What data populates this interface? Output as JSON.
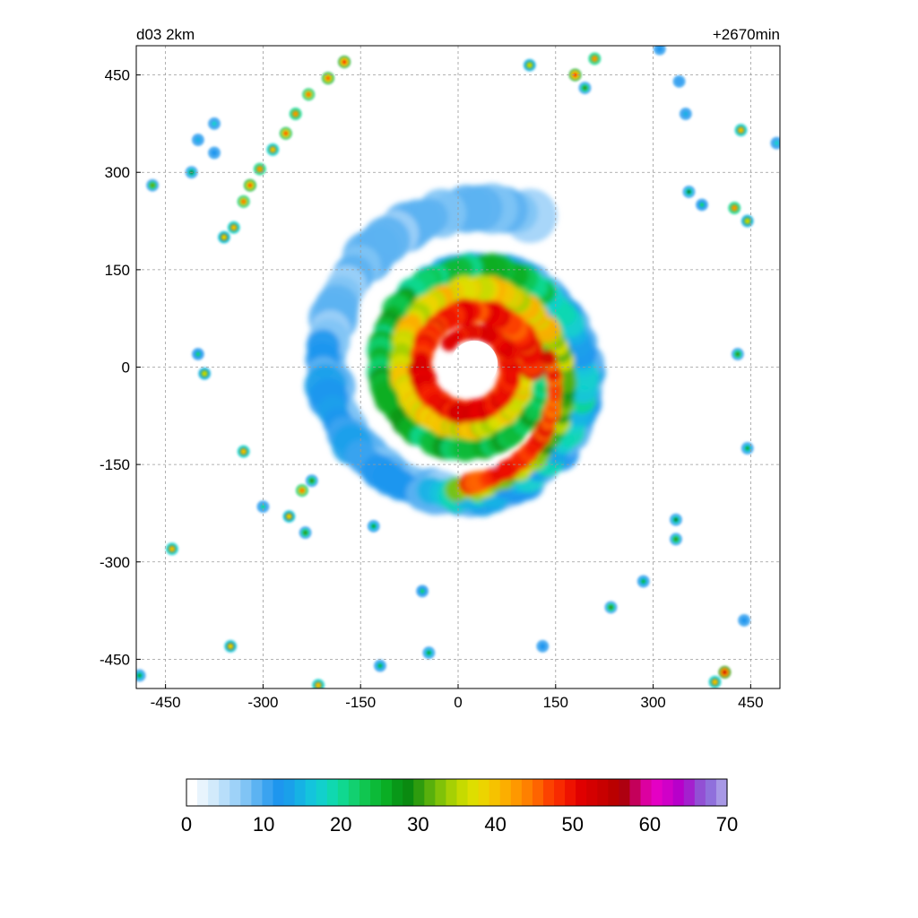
{
  "chart_data": {
    "type": "heatmap",
    "title_left": "d03 2km",
    "title_right": "+2670min",
    "xlim": [
      -495,
      495
    ],
    "ylim": [
      -495,
      495
    ],
    "x_ticks": [
      -450,
      -300,
      -150,
      0,
      150,
      300,
      450
    ],
    "y_ticks": [
      450,
      300,
      150,
      0,
      -150,
      -300,
      -450
    ],
    "grid": true,
    "colorbar": {
      "range": [
        0,
        70
      ],
      "ticks": [
        0,
        10,
        20,
        30,
        40,
        50,
        60,
        70
      ],
      "colors": [
        "#ffffff",
        "#e8f4fd",
        "#d2eafb",
        "#b8defa",
        "#9ed2f8",
        "#80c4f5",
        "#5cb3f2",
        "#3aa3f0",
        "#1e96ee",
        "#1aa0ea",
        "#16b2e4",
        "#14c4dc",
        "#12d0cc",
        "#10d8b0",
        "#10d890",
        "#12d070",
        "#10c650",
        "#0cba38",
        "#0aae24",
        "#089818",
        "#0a8a10",
        "#2e9c0e",
        "#58b00c",
        "#80c208",
        "#a6d004",
        "#c6da00",
        "#dede00",
        "#ecd400",
        "#f6c200",
        "#fcae00",
        "#fe9800",
        "#fe8000",
        "#fe6400",
        "#fc4200",
        "#f82a00",
        "#ee1200",
        "#e00000",
        "#d40000",
        "#c80000",
        "#ba0000",
        "#ae0010",
        "#c4005a",
        "#dc00a0",
        "#e400c4",
        "#d000c8",
        "#b800ca",
        "#a420ce",
        "#9250d4",
        "#9070dc",
        "#a898e6"
      ]
    },
    "storm": {
      "center": [
        20,
        0
      ],
      "description_values": {
        "eye_radius": 35,
        "inner_eyewall_peak_dbz": 50,
        "outer_band_peak_dbz": 45
      }
    },
    "cells": [
      {
        "x": -175,
        "y": 470,
        "dbz": 48
      },
      {
        "x": -200,
        "y": 445,
        "dbz": 46
      },
      {
        "x": -230,
        "y": 420,
        "dbz": 44
      },
      {
        "x": -250,
        "y": 390,
        "dbz": 42
      },
      {
        "x": -265,
        "y": 360,
        "dbz": 45
      },
      {
        "x": -285,
        "y": 335,
        "dbz": 40
      },
      {
        "x": -305,
        "y": 305,
        "dbz": 42
      },
      {
        "x": -320,
        "y": 280,
        "dbz": 46
      },
      {
        "x": -330,
        "y": 255,
        "dbz": 44
      },
      {
        "x": -345,
        "y": 215,
        "dbz": 40
      },
      {
        "x": -360,
        "y": 200,
        "dbz": 38
      },
      {
        "x": -375,
        "y": 375,
        "dbz": 18
      },
      {
        "x": -400,
        "y": 350,
        "dbz": 15
      },
      {
        "x": -410,
        "y": 300,
        "dbz": 28
      },
      {
        "x": -470,
        "y": 280,
        "dbz": 32
      },
      {
        "x": -375,
        "y": 330,
        "dbz": 12
      },
      {
        "x": -390,
        "y": -10,
        "dbz": 36
      },
      {
        "x": -400,
        "y": 20,
        "dbz": 22
      },
      {
        "x": -330,
        "y": -130,
        "dbz": 40
      },
      {
        "x": -240,
        "y": -190,
        "dbz": 44
      },
      {
        "x": -225,
        "y": -175,
        "dbz": 30
      },
      {
        "x": -260,
        "y": -230,
        "dbz": 38
      },
      {
        "x": -235,
        "y": -255,
        "dbz": 30
      },
      {
        "x": -300,
        "y": -215,
        "dbz": 20
      },
      {
        "x": -130,
        "y": -245,
        "dbz": 26
      },
      {
        "x": -55,
        "y": -345,
        "dbz": 22
      },
      {
        "x": -440,
        "y": -280,
        "dbz": 40
      },
      {
        "x": -350,
        "y": -430,
        "dbz": 38
      },
      {
        "x": -215,
        "y": -490,
        "dbz": 40
      },
      {
        "x": -490,
        "y": -475,
        "dbz": 26
      },
      {
        "x": -120,
        "y": -460,
        "dbz": 24
      },
      {
        "x": -45,
        "y": -440,
        "dbz": 26
      },
      {
        "x": 110,
        "y": 465,
        "dbz": 36
      },
      {
        "x": 180,
        "y": 450,
        "dbz": 48
      },
      {
        "x": 195,
        "y": 430,
        "dbz": 30
      },
      {
        "x": 210,
        "y": 475,
        "dbz": 42
      },
      {
        "x": 310,
        "y": 490,
        "dbz": 12
      },
      {
        "x": 340,
        "y": 440,
        "dbz": 10
      },
      {
        "x": 350,
        "y": 390,
        "dbz": 14
      },
      {
        "x": 435,
        "y": 365,
        "dbz": 40
      },
      {
        "x": 490,
        "y": 345,
        "dbz": 18
      },
      {
        "x": 425,
        "y": 245,
        "dbz": 42
      },
      {
        "x": 445,
        "y": 225,
        "dbz": 36
      },
      {
        "x": 355,
        "y": 270,
        "dbz": 28
      },
      {
        "x": 375,
        "y": 250,
        "dbz": 22
      },
      {
        "x": 430,
        "y": 20,
        "dbz": 30
      },
      {
        "x": 445,
        "y": -125,
        "dbz": 26
      },
      {
        "x": 335,
        "y": -235,
        "dbz": 28
      },
      {
        "x": 335,
        "y": -265,
        "dbz": 30
      },
      {
        "x": 285,
        "y": -330,
        "dbz": 24
      },
      {
        "x": 235,
        "y": -370,
        "dbz": 30
      },
      {
        "x": 130,
        "y": -430,
        "dbz": 12
      },
      {
        "x": 410,
        "y": -470,
        "dbz": 52
      },
      {
        "x": 395,
        "y": -485,
        "dbz": 40
      },
      {
        "x": 440,
        "y": -390,
        "dbz": 12
      }
    ]
  }
}
